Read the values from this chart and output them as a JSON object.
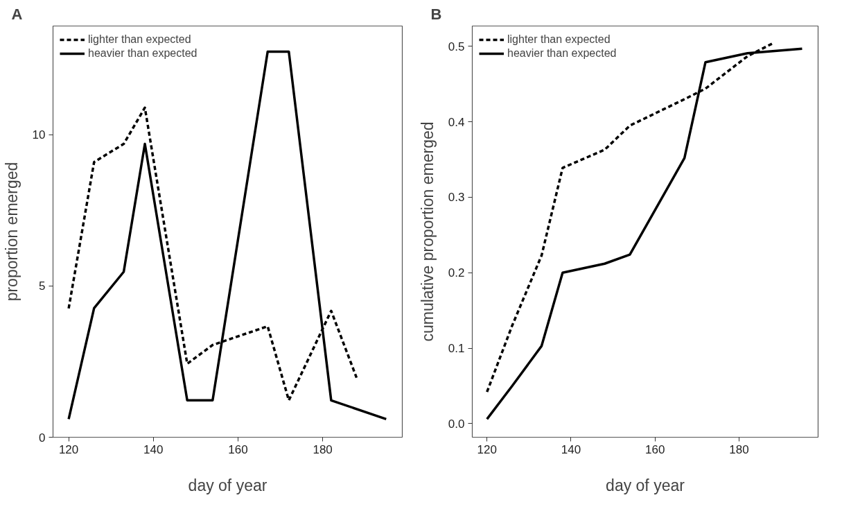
{
  "chart_data": [
    {
      "type": "line",
      "title": "A",
      "xlabel": "day of year",
      "ylabel": "proportion emerged",
      "xlim": [
        116.3,
        198.8
      ],
      "ylim": [
        0,
        13.6
      ],
      "xticks": [
        120,
        140,
        160,
        180
      ],
      "yticks": [
        0,
        5,
        10
      ],
      "grid": false,
      "legend": "top left",
      "series": [
        {
          "name": "lighter than expected",
          "color": "#000000",
          "line_style": "dashed",
          "x": [
            120,
            126,
            133,
            138,
            148,
            154,
            167,
            172,
            182,
            188
          ],
          "values": [
            4.26,
            9.1,
            9.7,
            10.9,
            2.43,
            3.05,
            3.67,
            1.22,
            4.18,
            1.97
          ]
        },
        {
          "name": "heavier than expected",
          "color": "#000000",
          "line_style": "solid",
          "x": [
            120,
            126,
            133,
            138,
            148,
            154,
            167,
            172,
            182,
            195
          ],
          "values": [
            0.6,
            4.27,
            5.47,
            9.7,
            1.22,
            1.22,
            12.75,
            12.75,
            1.22,
            0.6
          ]
        }
      ]
    },
    {
      "type": "line",
      "title": "B",
      "xlabel": "day of year",
      "ylabel": "cumulative proportion emerged",
      "xlim": [
        116.5,
        198.8
      ],
      "ylim": [
        -0.018,
        0.527
      ],
      "xticks": [
        120,
        140,
        160,
        180
      ],
      "yticks": [
        {
          "value": 0,
          "label": "0.0"
        },
        0.1,
        0.2,
        0.3,
        0.4,
        0.5
      ],
      "grid": false,
      "legend": "top left",
      "series": [
        {
          "name": "lighter than expected",
          "color": "#000000",
          "line_style": "dashed",
          "x": [
            120,
            126,
            133,
            138,
            148,
            154,
            167,
            172,
            182,
            188
          ],
          "values": [
            0.042,
            0.13,
            0.223,
            0.339,
            0.363,
            0.395,
            0.43,
            0.444,
            0.487,
            0.504
          ]
        },
        {
          "name": "heavier than expected",
          "color": "#000000",
          "line_style": "solid",
          "x": [
            120,
            126,
            133,
            138,
            148,
            154,
            167,
            172,
            182,
            195
          ],
          "values": [
            0.006,
            0.05,
            0.103,
            0.2,
            0.212,
            0.224,
            0.352,
            0.479,
            0.491,
            0.497
          ]
        }
      ]
    }
  ]
}
